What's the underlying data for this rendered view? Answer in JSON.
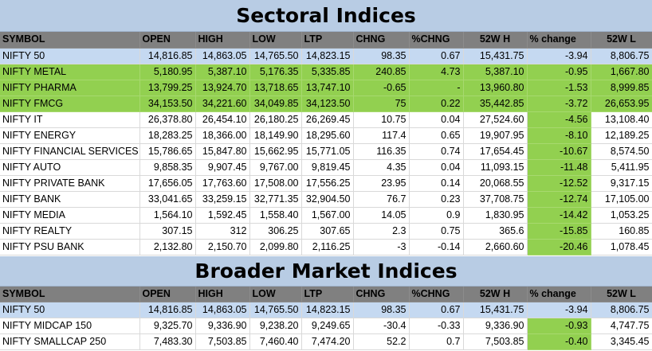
{
  "sectoral": {
    "title": "Sectoral Indices",
    "headers": [
      "SYMBOL",
      "OPEN",
      "HIGH",
      "LOW",
      "LTP",
      "CHNG",
      "%CHNG",
      "52W H",
      "% change",
      "52W L"
    ],
    "rows": [
      {
        "symbol": "NIFTY 50",
        "open": "14,816.85",
        "high": "14,863.05",
        "low": "14,765.50",
        "ltp": "14,823.15",
        "chng": "98.35",
        "pchng": "0.67",
        "h52": "15,431.75",
        "pchange": "-3.94",
        "l52": "8,806.75",
        "style": "n50"
      },
      {
        "symbol": "NIFTY METAL",
        "open": "5,180.95",
        "high": "5,387.10",
        "low": "5,176.35",
        "ltp": "5,335.85",
        "chng": "240.85",
        "pchng": "4.73",
        "h52": "5,387.10",
        "pchange": "-0.95",
        "l52": "1,667.80",
        "style": "green"
      },
      {
        "symbol": "NIFTY PHARMA",
        "open": "13,799.25",
        "high": "13,924.70",
        "low": "13,718.65",
        "ltp": "13,747.10",
        "chng": "-0.65",
        "pchng": "-",
        "h52": "13,960.80",
        "pchange": "-1.53",
        "l52": "8,999.85",
        "style": "green"
      },
      {
        "symbol": "NIFTY FMCG",
        "open": "34,153.50",
        "high": "34,221.60",
        "low": "34,049.85",
        "ltp": "34,123.50",
        "chng": "75",
        "pchng": "0.22",
        "h52": "35,442.85",
        "pchange": "-3.72",
        "l52": "26,653.95",
        "style": "green"
      },
      {
        "symbol": "NIFTY IT",
        "open": "26,378.80",
        "high": "26,454.10",
        "low": "26,180.25",
        "ltp": "26,269.45",
        "chng": "10.75",
        "pchng": "0.04",
        "h52": "27,524.60",
        "pchange": "-4.56",
        "l52": "13,108.40",
        "style": "hl"
      },
      {
        "symbol": "NIFTY ENERGY",
        "open": "18,283.25",
        "high": "18,366.00",
        "low": "18,149.90",
        "ltp": "18,295.60",
        "chng": "117.4",
        "pchng": "0.65",
        "h52": "19,907.95",
        "pchange": "-8.10",
        "l52": "12,189.25",
        "style": "hl"
      },
      {
        "symbol": "NIFTY FINANCIAL SERVICES",
        "open": "15,786.65",
        "high": "15,847.80",
        "low": "15,662.95",
        "ltp": "15,771.05",
        "chng": "116.35",
        "pchng": "0.74",
        "h52": "17,654.45",
        "pchange": "-10.67",
        "l52": "8,574.50",
        "style": "hl"
      },
      {
        "symbol": "NIFTY AUTO",
        "open": "9,858.35",
        "high": "9,907.45",
        "low": "9,767.00",
        "ltp": "9,819.45",
        "chng": "4.35",
        "pchng": "0.04",
        "h52": "11,093.15",
        "pchange": "-11.48",
        "l52": "5,411.95",
        "style": "hl"
      },
      {
        "symbol": "NIFTY PRIVATE BANK",
        "open": "17,656.05",
        "high": "17,763.60",
        "low": "17,508.00",
        "ltp": "17,556.25",
        "chng": "23.95",
        "pchng": "0.14",
        "h52": "20,068.55",
        "pchange": "-12.52",
        "l52": "9,317.15",
        "style": "hl"
      },
      {
        "symbol": "NIFTY BANK",
        "open": "33,041.65",
        "high": "33,259.15",
        "low": "32,771.35",
        "ltp": "32,904.50",
        "chng": "76.7",
        "pchng": "0.23",
        "h52": "37,708.75",
        "pchange": "-12.74",
        "l52": "17,105.00",
        "style": "hl"
      },
      {
        "symbol": "NIFTY MEDIA",
        "open": "1,564.10",
        "high": "1,592.45",
        "low": "1,558.40",
        "ltp": "1,567.00",
        "chng": "14.05",
        "pchng": "0.9",
        "h52": "1,830.95",
        "pchange": "-14.42",
        "l52": "1,053.25",
        "style": "hl"
      },
      {
        "symbol": "NIFTY REALTY",
        "open": "307.15",
        "high": "312",
        "low": "306.25",
        "ltp": "307.65",
        "chng": "2.3",
        "pchng": "0.75",
        "h52": "365.6",
        "pchange": "-15.85",
        "l52": "160.85",
        "style": "hl"
      },
      {
        "symbol": "NIFTY PSU BANK",
        "open": "2,132.80",
        "high": "2,150.70",
        "low": "2,099.80",
        "ltp": "2,116.25",
        "chng": "-3",
        "pchng": "-0.14",
        "h52": "2,660.60",
        "pchange": "-20.46",
        "l52": "1,078.45",
        "style": "hl"
      }
    ]
  },
  "broader": {
    "title": "Broader Market Indices",
    "headers": [
      "SYMBOL",
      "OPEN",
      "HIGH",
      "LOW",
      "LTP",
      "CHNG",
      "%CHNG",
      "52W H",
      "% change",
      "52W L"
    ],
    "rows": [
      {
        "symbol": "NIFTY 50",
        "open": "14,816.85",
        "high": "14,863.05",
        "low": "14,765.50",
        "ltp": "14,823.15",
        "chng": "98.35",
        "pchng": "0.67",
        "h52": "15,431.75",
        "pchange": "-3.94",
        "l52": "8,806.75",
        "style": "n50"
      },
      {
        "symbol": "NIFTY MIDCAP 150",
        "open": "9,325.70",
        "high": "9,336.90",
        "low": "9,238.20",
        "ltp": "9,249.65",
        "chng": "-30.4",
        "pchng": "-0.33",
        "h52": "9,336.90",
        "pchange": "-0.93",
        "l52": "4,747.75",
        "style": "hl"
      },
      {
        "symbol": "NIFTY SMALLCAP 250",
        "open": "7,483.30",
        "high": "7,503.85",
        "low": "7,460.40",
        "ltp": "7,474.20",
        "chng": "52.2",
        "pchng": "0.7",
        "h52": "7,503.85",
        "pchange": "-0.40",
        "l52": "3,345.45",
        "style": "hl"
      }
    ]
  },
  "colors": {
    "banner": "#b8cce4",
    "header_row": "#808080",
    "nifty50_row": "#c5d9f1",
    "highlight_green": "#92d050"
  }
}
